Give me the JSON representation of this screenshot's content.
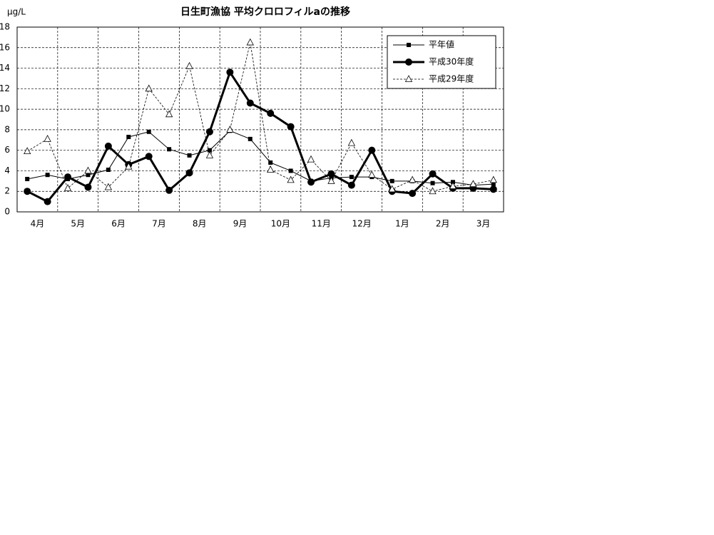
{
  "chart_data": {
    "type": "line",
    "title": "日生町漁協  平均クロロフィルaの推移",
    "y_label": "μg/L",
    "categories": [
      "4月",
      "5月",
      "6月",
      "7月",
      "8月",
      "9月",
      "10月",
      "11月",
      "12月",
      "1月",
      "2月",
      "3月"
    ],
    "ylim": [
      0,
      18
    ],
    "yticks": [
      0,
      2,
      4,
      6,
      8,
      10,
      12,
      14,
      16,
      18
    ],
    "grid": true,
    "legend": "upper right",
    "series": [
      {
        "name": "平年値",
        "color": "#000000",
        "marker": "square",
        "line_width": 1,
        "dash": false,
        "values": [
          [
            3.2,
            3.6
          ],
          [
            3.2,
            3.6
          ],
          [
            4.1,
            7.3
          ],
          [
            7.8,
            6.1
          ],
          [
            5.5,
            6.0
          ],
          [
            7.9,
            7.1
          ],
          [
            4.8,
            4.0
          ],
          [
            3.0,
            3.3
          ],
          [
            3.4,
            3.4
          ],
          [
            3.0,
            3.0
          ],
          [
            2.8,
            2.9
          ],
          [
            2.6,
            2.7
          ]
        ]
      },
      {
        "name": "平成30年度",
        "color": "#000000",
        "marker": "circle",
        "line_width": 3,
        "dash": false,
        "values": [
          [
            2.0,
            1.0
          ],
          [
            3.4,
            2.4
          ],
          [
            6.4,
            4.6
          ],
          [
            5.4,
            2.1
          ],
          [
            3.8,
            7.8
          ],
          [
            13.6,
            10.6
          ],
          [
            9.6,
            8.3
          ],
          [
            2.9,
            3.7
          ],
          [
            2.6,
            6.0
          ],
          [
            2.0,
            1.8
          ],
          [
            3.7,
            2.3
          ],
          [
            2.3,
            2.2
          ]
        ]
      },
      {
        "name": "平成29年度",
        "color": "#000000",
        "marker": "triangle",
        "line_width": 0.8,
        "dash": true,
        "values": [
          [
            5.9,
            7.1
          ],
          [
            2.3,
            4.0
          ],
          [
            2.4,
            4.4
          ],
          [
            12.0,
            9.5
          ],
          [
            14.2,
            5.5
          ],
          [
            8.0,
            16.5
          ],
          [
            4.1,
            3.1
          ],
          [
            5.1,
            3.0
          ],
          [
            6.7,
            3.6
          ],
          [
            2.2,
            3.1
          ],
          [
            2.0,
            2.5
          ],
          [
            2.7,
            3.1
          ]
        ]
      }
    ]
  }
}
